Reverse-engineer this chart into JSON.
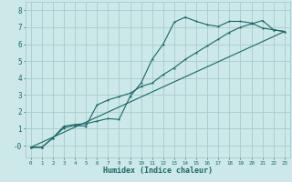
{
  "title": "",
  "xlabel": "Humidex (Indice chaleur)",
  "ylabel": "",
  "bg_color": "#cce8e8",
  "grid_color": "#aacccc",
  "line_color": "#1a6666",
  "xlim": [
    -0.5,
    23.5
  ],
  "ylim": [
    -0.7,
    8.5
  ],
  "xticks": [
    0,
    1,
    2,
    3,
    4,
    5,
    6,
    7,
    8,
    9,
    10,
    11,
    12,
    13,
    14,
    15,
    16,
    17,
    18,
    19,
    20,
    21,
    22,
    23
  ],
  "yticks": [
    0,
    1,
    2,
    3,
    4,
    5,
    6,
    7,
    8
  ],
  "ytick_labels": [
    "-0",
    "1",
    "2",
    "3",
    "4",
    "5",
    "6",
    "7",
    "8"
  ],
  "line1_x": [
    0,
    1,
    2,
    3,
    4,
    5,
    6,
    7,
    8,
    9,
    10,
    11,
    12,
    13,
    14,
    15,
    16,
    17,
    18,
    19,
    20,
    21,
    22,
    23
  ],
  "line1_y": [
    -0.1,
    -0.1,
    0.45,
    1.15,
    1.25,
    1.3,
    1.45,
    1.6,
    1.55,
    2.9,
    3.7,
    5.1,
    6.0,
    7.3,
    7.6,
    7.35,
    7.15,
    7.05,
    7.35,
    7.35,
    7.25,
    6.95,
    6.85,
    6.75
  ],
  "line2_x": [
    0,
    1,
    2,
    3,
    4,
    5,
    6,
    7,
    8,
    9,
    10,
    11,
    12,
    13,
    14,
    15,
    16,
    17,
    18,
    19,
    20,
    21,
    22,
    23
  ],
  "line2_y": [
    -0.1,
    -0.1,
    0.45,
    1.05,
    1.2,
    1.15,
    2.4,
    2.7,
    2.9,
    3.1,
    3.5,
    3.7,
    4.2,
    4.6,
    5.1,
    5.5,
    5.9,
    6.3,
    6.7,
    7.0,
    7.2,
    7.4,
    6.85,
    6.75
  ],
  "line3_x": [
    0,
    23
  ],
  "line3_y": [
    -0.1,
    6.75
  ]
}
